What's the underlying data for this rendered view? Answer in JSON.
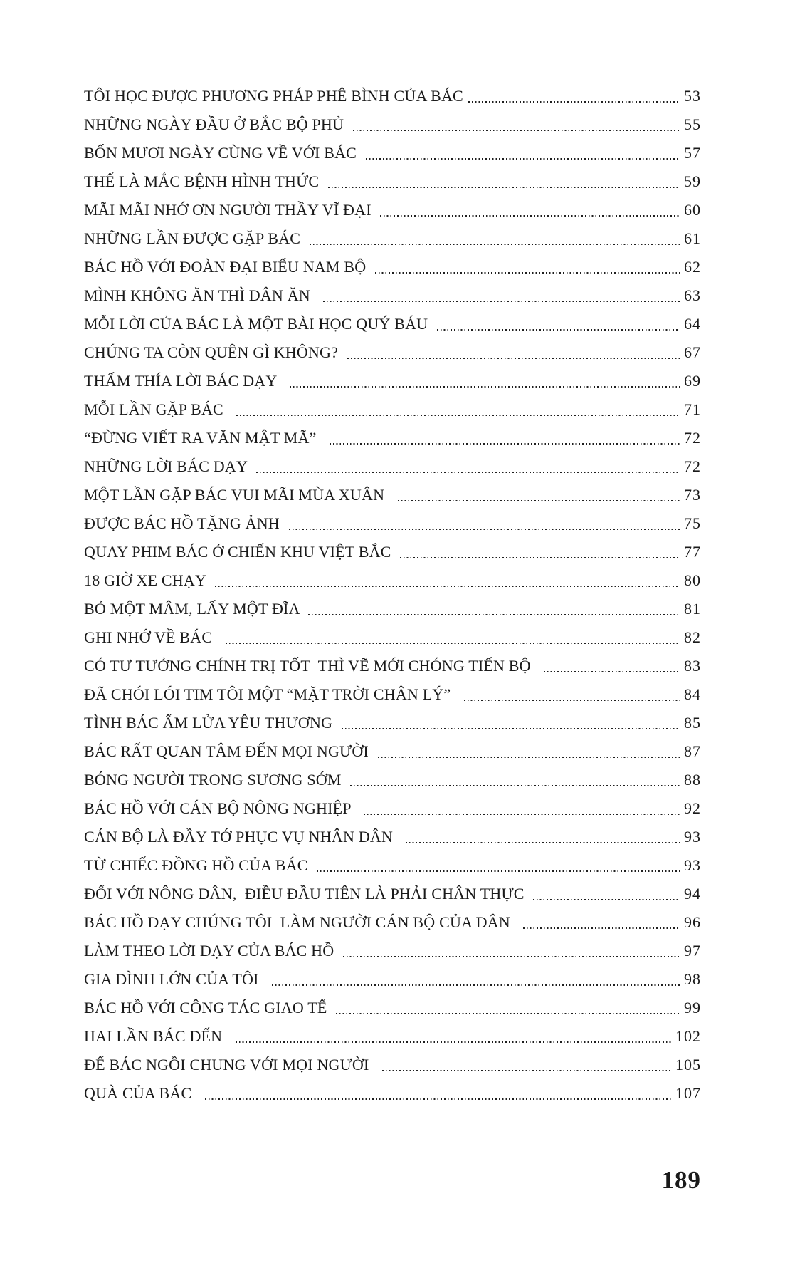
{
  "page": {
    "folio": "189"
  },
  "toc": {
    "entries": [
      {
        "title": "TÔI HỌC ĐƯỢC PHƯƠNG PHÁP PHÊ BÌNH CỦA BÁC",
        "page": "53"
      },
      {
        "title": "NHỮNG NGÀY ĐẦU Ở BẮC BỘ PHỦ ",
        "page": "55"
      },
      {
        "title": "BỐN MƯƠI NGÀY CÙNG VỀ VỚI BÁC ",
        "page": "57"
      },
      {
        "title": "THẾ LÀ MẮC BỆNH HÌNH THỨC ",
        "page": "59"
      },
      {
        "title": "MÃI MÃI NHỚ ƠN NGƯỜI THẦY VĨ ĐẠI ",
        "page": "60"
      },
      {
        "title": "NHỮNG LẦN ĐƯỢC GẶP BÁC ",
        "page": "61"
      },
      {
        "title": "BÁC HỒ VỚI ĐOÀN ĐẠI BIỂU NAM BỘ ",
        "page": "62"
      },
      {
        "title": "MÌNH KHÔNG ĂN THÌ DÂN ĂN  ",
        "page": "63"
      },
      {
        "title": "MỖI LỜI CỦA BÁC LÀ MỘT BÀI HỌC QUÝ BÁU ",
        "page": "64"
      },
      {
        "title": "CHÚNG TA CÒN QUÊN GÌ KHÔNG? ",
        "page": "67"
      },
      {
        "title": "THẤM THÍA LỜI BÁC DẠY  ",
        "page": "69"
      },
      {
        "title": "MỖI LẦN GẶP BÁC  ",
        "page": "71"
      },
      {
        "title": "“ĐỪNG VIẾT RA VĂN MẬT MÃ”  ",
        "page": "72"
      },
      {
        "title": "NHỮNG LỜI BÁC DẠY ",
        "page": "72"
      },
      {
        "title": "MỘT LẦN GẶP BÁC VUI MÃI MÙA XUÂN  ",
        "page": "73"
      },
      {
        "title": "ĐƯỢC BÁC HỒ TẶNG ẢNH ",
        "page": "75"
      },
      {
        "title": "QUAY PHIM BÁC Ở CHIẾN KHU VIỆT BẮC ",
        "page": "77"
      },
      {
        "title": "18 GIỜ XE CHẠY ",
        "page": "80"
      },
      {
        "title": "BỎ MỘT MÂM, LẤY MỘT ĐĨA ",
        "page": "81"
      },
      {
        "title": "GHI NHỚ VỀ BÁC  ",
        "page": "82"
      },
      {
        "title": "CÓ TƯ TƯỞNG CHÍNH TRỊ TỐT  THÌ VẼ MỚI CHÓNG TIẾN BỘ  ",
        "page": "83"
      },
      {
        "title": "ĐÃ CHÓI LÓI TIM TÔI MỘT “MẶT TRỜI CHÂN LÝ”  ",
        "page": "84"
      },
      {
        "title": "TÌNH BÁC ẤM LỬA YÊU THƯƠNG ",
        "page": "85"
      },
      {
        "title": "BÁC RẤT QUAN TÂM ĐẾN MỌI NGƯỜI ",
        "page": "87"
      },
      {
        "title": "BÓNG NGƯỜI TRONG SƯƠNG SỚM ",
        "page": "88"
      },
      {
        "title": "BÁC HỒ VỚI CÁN BỘ NÔNG NGHIỆP  ",
        "page": "92"
      },
      {
        "title": "CÁN BỘ LÀ ĐẦY TỚ PHỤC VỤ NHÂN DÂN  ",
        "page": "93"
      },
      {
        "title": "TỪ CHIẾC ĐỒNG HỒ CỦA BÁC ",
        "page": "93"
      },
      {
        "title": "ĐỐI VỚI NÔNG DÂN,  ĐIỀU ĐẦU TIÊN LÀ PHẢI CHÂN THỰC ",
        "page": "94"
      },
      {
        "title": "BÁC HỒ DẠY CHÚNG TÔI  LÀM NGƯỜI CÁN BỘ CỦA DÂN  ",
        "page": "96"
      },
      {
        "title": "LÀM THEO LỜI DẠY CỦA BÁC HỒ ",
        "page": "97"
      },
      {
        "title": "GIA ĐÌNH LỚN CỦA TÔI  ",
        "page": "98"
      },
      {
        "title": "BÁC HỒ VỚI CÔNG TÁC GIAO TẾ ",
        "page": "99"
      },
      {
        "title": "HAI LẦN BÁC ĐẾN  ",
        "page": "102"
      },
      {
        "title": "ĐỂ BÁC NGỒI CHUNG VỚI MỌI NGƯỜI  ",
        "page": "105"
      },
      {
        "title": "QUÀ CỦA BÁC  ",
        "page": "107"
      }
    ]
  }
}
